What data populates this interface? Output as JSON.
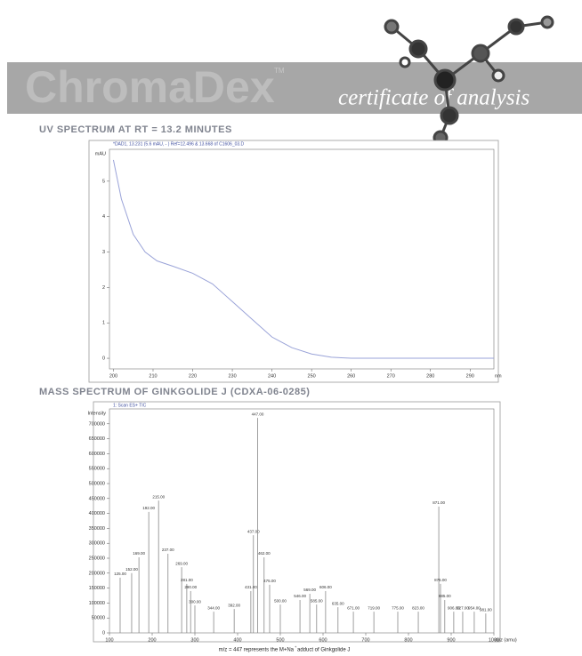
{
  "header": {
    "logo": "ChromaDex",
    "trademark": "TM",
    "tagline": "certificate of analysis"
  },
  "chart_data": [
    {
      "type": "line",
      "title": "UV SPECTRUM AT RT = 13.2 MINUTES",
      "legend": "*DAD1, 13.231 (5.6 mAU, - ) Ref=12.496 & 13.668 of C1606_03.D",
      "y_label": "mAU",
      "x_label": "nm",
      "color": "#9aa3d8",
      "x": [
        200,
        202,
        205,
        208,
        211,
        215,
        220,
        225,
        230,
        235,
        240,
        245,
        250,
        255,
        260,
        270,
        280,
        290,
        296
      ],
      "values": [
        5.6,
        4.5,
        3.5,
        3.0,
        2.75,
        2.6,
        2.4,
        2.1,
        1.6,
        1.1,
        0.6,
        0.3,
        0.12,
        0.03,
        0,
        0,
        0,
        0,
        0
      ],
      "xlim": [
        199,
        296
      ],
      "ylim": [
        -0.3,
        5.9
      ],
      "xticks": [
        200,
        210,
        220,
        230,
        240,
        250,
        260,
        270,
        280,
        290
      ],
      "yticks": [
        0,
        1,
        2,
        3,
        4,
        5
      ]
    },
    {
      "type": "bar",
      "title": "MASS SPECTRUM OF GINKGOLIDE J (CDXA-06-0285)",
      "legend": "1: Scan ES+ TIC",
      "y_label": "Intensity",
      "x_label": "m/z (amu)",
      "color": "#888888",
      "x": [
        125,
        152,
        169,
        192,
        215,
        237,
        269,
        281,
        290,
        300,
        344,
        392,
        431,
        437,
        447,
        462,
        475,
        500,
        546,
        569,
        585,
        606,
        635,
        671,
        719,
        775,
        823,
        871,
        875,
        885,
        906,
        927,
        954,
        981
      ],
      "x_labels": [
        "125.00",
        "152.00",
        "169.00",
        "192.00",
        "215.00",
        "237.00",
        "269.00",
        "281.00",
        "290.00",
        "300.00",
        "344.00",
        "392.00",
        "431.00",
        "437.00",
        "447.00",
        "462.00",
        "475.00",
        "500.00",
        "546.00",
        "569.00",
        "585.00",
        "606.00",
        "635.00",
        "671.00",
        "719.00",
        "775.00",
        "823.00",
        "871.00",
        "875.00",
        "885.00",
        "906.00",
        "927.00",
        "954.00",
        "981.00"
      ],
      "values": [
        185000,
        200000,
        253000,
        405000,
        443000,
        265000,
        220000,
        164000,
        140000,
        92000,
        71000,
        80000,
        140000,
        327000,
        720000,
        253000,
        161000,
        95000,
        110000,
        131000,
        95000,
        140000,
        86000,
        71000,
        71000,
        71000,
        71000,
        423000,
        164000,
        110000,
        71000,
        71000,
        71000,
        65000
      ],
      "xlim": [
        100,
        1000
      ],
      "ylim": [
        0,
        750000
      ],
      "xticks": [
        100,
        200,
        300,
        400,
        500,
        600,
        700,
        800,
        900,
        1000
      ],
      "yticks": [
        0,
        50000,
        100000,
        150000,
        200000,
        250000,
        300000,
        350000,
        400000,
        450000,
        500000,
        550000,
        600000,
        650000,
        700000
      ]
    }
  ],
  "caption": {
    "text": "m/z = 447 represents the M+Na",
    "sup": "+",
    "rest": " adduct of Ginkgolide J"
  }
}
